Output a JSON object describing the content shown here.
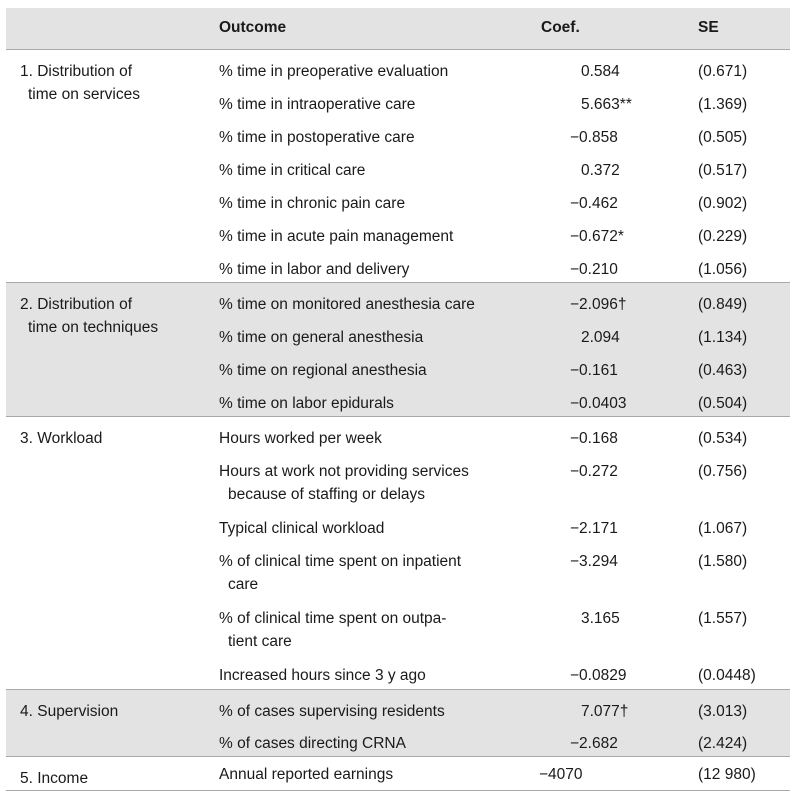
{
  "header": {
    "outcome": "Outcome",
    "coef": "Coef.",
    "se": "SE"
  },
  "groups": [
    {
      "label_l1": "1. Distribution of",
      "label_l2": "time on services",
      "shaded": false,
      "rows": [
        {
          "o1": "% time in preoperative evaluation",
          "coef": "0.584",
          "se": "(0.671)"
        },
        {
          "o1": "% time in intraoperative care",
          "coef": "5.663**",
          "se": "(1.369)"
        },
        {
          "o1": "% time in postoperative care",
          "coef": "−0.858",
          "se": "(0.505)"
        },
        {
          "o1": "% time in critical care",
          "coef": "0.372",
          "se": "(0.517)"
        },
        {
          "o1": "% time in chronic pain care",
          "coef": "−0.462",
          "se": "(0.902)"
        },
        {
          "o1": "% time in acute pain management",
          "coef": "−0.672*",
          "se": "(0.229)"
        },
        {
          "o1": "% time in labor and delivery",
          "coef": "−0.210",
          "se": "(1.056)"
        }
      ]
    },
    {
      "label_l1": "2. Distribution of",
      "label_l2": "time on techniques",
      "shaded": true,
      "rows": [
        {
          "o1": "% time on monitored anesthesia care",
          "coef": "−2.096†",
          "se": "(0.849)"
        },
        {
          "o1": "% time on general anesthesia",
          "coef": "2.094",
          "se": "(1.134)"
        },
        {
          "o1": "% time on regional anesthesia",
          "coef": "−0.161",
          "se": "(0.463)"
        },
        {
          "o1": "% time on labor epidurals",
          "coef": "−0.0403",
          "se": "(0.504)"
        }
      ]
    },
    {
      "label_l1": "3. Workload",
      "label_l2": "",
      "shaded": false,
      "rows": [
        {
          "o1": "Hours worked per week",
          "coef": "−0.168",
          "se": "(0.534)"
        },
        {
          "o1": "Hours at work not providing services",
          "o2": "because of staffing or delays",
          "coef": "−0.272",
          "se": "(0.756)"
        },
        {
          "o1": "Typical clinical workload",
          "coef": "−2.171",
          "se": "(1.067)"
        },
        {
          "o1": "% of clinical time spent on inpatient",
          "o2": "care",
          "coef": "−3.294",
          "se": "(1.580)"
        },
        {
          "o1": "% of clinical time spent on outpa-",
          "o2": "tient care",
          "coef": "3.165",
          "se": "(1.557)"
        },
        {
          "o1": "Increased hours since 3 y ago",
          "coef": "−0.0829",
          "se": "(0.0448)"
        }
      ]
    },
    {
      "label_l1": "4. Supervision",
      "label_l2": "",
      "shaded": true,
      "rows": [
        {
          "o1": "% of cases supervising residents",
          "coef": "7.077†",
          "se": "(3.013)"
        },
        {
          "o1": "% of cases directing CRNA",
          "coef": "−2.682",
          "se": "(2.424)"
        }
      ]
    },
    {
      "label_l1": "5. Income",
      "label_l2": "",
      "shaded": false,
      "rows": [
        {
          "o1": "Annual reported earnings",
          "coef": "−4070",
          "se": "(12 980)"
        }
      ]
    }
  ]
}
